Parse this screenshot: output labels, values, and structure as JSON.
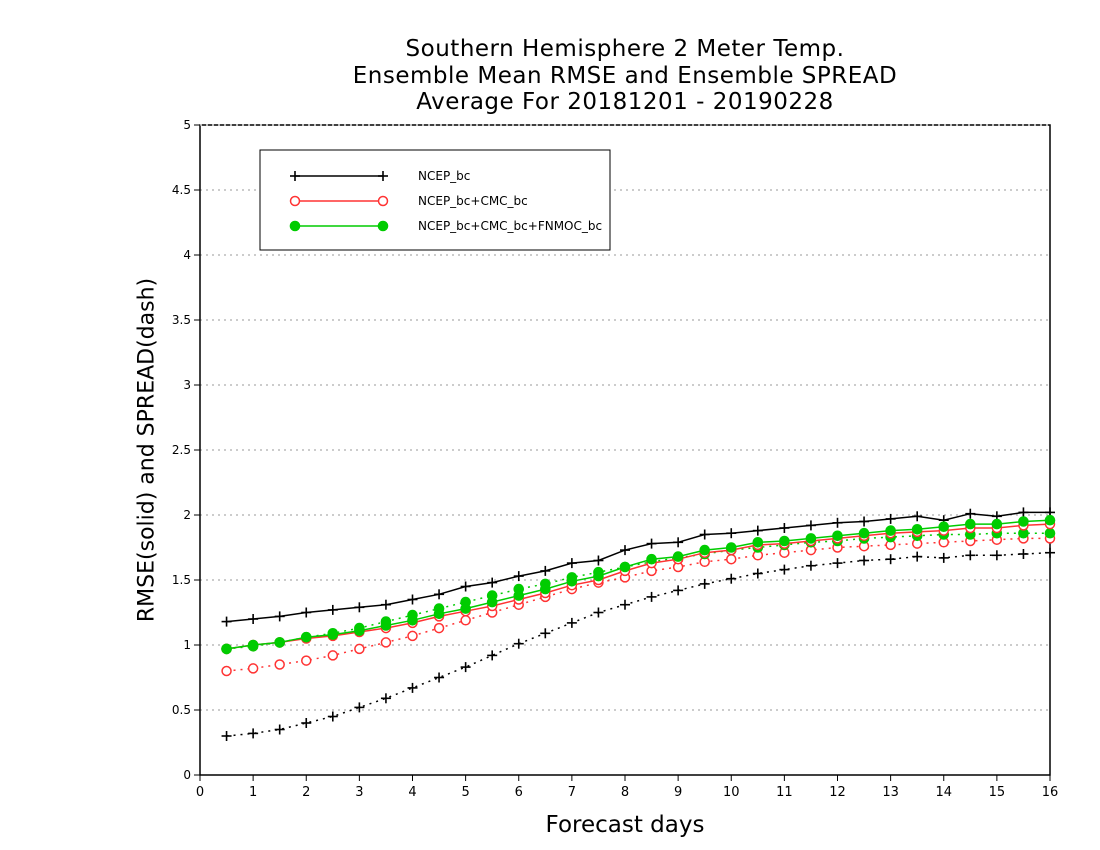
{
  "chart_data": {
    "type": "line",
    "title_lines": [
      "Southern Hemisphere 2 Meter Temp.",
      "Ensemble Mean RMSE and Ensemble SPREAD",
      "Average For 20181201 - 20190228"
    ],
    "xlabel": "Forecast days",
    "ylabel": "RMSE(solid) and SPREAD(dash)",
    "xlim": [
      0,
      16
    ],
    "ylim": [
      0,
      5
    ],
    "x_ticks": [
      "0",
      "1",
      "2",
      "3",
      "4",
      "5",
      "6",
      "7",
      "8",
      "9",
      "10",
      "11",
      "12",
      "13",
      "14",
      "15",
      "16"
    ],
    "y_ticks": [
      "0",
      "0.5",
      "1",
      "1.5",
      "2",
      "2.5",
      "3",
      "3.5",
      "4",
      "4.5",
      "5"
    ],
    "grid": "horizontal dotted",
    "legend_position": "top-left",
    "x": [
      0.5,
      1,
      1.5,
      2,
      2.5,
      3,
      3.5,
      4,
      4.5,
      5,
      5.5,
      6,
      6.5,
      7,
      7.5,
      8,
      8.5,
      9,
      9.5,
      10,
      10.5,
      11,
      11.5,
      12,
      12.5,
      13,
      13.5,
      14,
      14.5,
      15,
      15.5,
      16
    ],
    "series": [
      {
        "name": "NCEP_bc",
        "color": "#000000",
        "marker": "plus",
        "rmse": [
          1.18,
          1.2,
          1.22,
          1.25,
          1.27,
          1.29,
          1.31,
          1.35,
          1.39,
          1.45,
          1.48,
          1.53,
          1.57,
          1.63,
          1.65,
          1.73,
          1.78,
          1.79,
          1.85,
          1.86,
          1.88,
          1.9,
          1.92,
          1.94,
          1.95,
          1.97,
          1.99,
          1.96,
          2.01,
          1.99,
          2.02,
          2.02
        ],
        "spread": [
          0.3,
          0.32,
          0.35,
          0.4,
          0.45,
          0.52,
          0.59,
          0.67,
          0.75,
          0.83,
          0.92,
          1.01,
          1.09,
          1.17,
          1.25,
          1.31,
          1.37,
          1.42,
          1.47,
          1.51,
          1.55,
          1.58,
          1.61,
          1.63,
          1.65,
          1.66,
          1.68,
          1.67,
          1.69,
          1.69,
          1.7,
          1.71
        ]
      },
      {
        "name": "NCEP_bc+CMC_bc",
        "color": "#ff3333",
        "marker": "open-circle",
        "rmse": [
          0.97,
          1.0,
          1.02,
          1.05,
          1.07,
          1.1,
          1.13,
          1.17,
          1.22,
          1.26,
          1.3,
          1.35,
          1.4,
          1.46,
          1.5,
          1.57,
          1.63,
          1.66,
          1.71,
          1.73,
          1.77,
          1.78,
          1.8,
          1.82,
          1.84,
          1.86,
          1.87,
          1.88,
          1.9,
          1.9,
          1.92,
          1.93
        ],
        "spread": [
          0.8,
          0.82,
          0.85,
          0.88,
          0.92,
          0.97,
          1.02,
          1.07,
          1.13,
          1.19,
          1.25,
          1.31,
          1.37,
          1.43,
          1.48,
          1.52,
          1.57,
          1.6,
          1.64,
          1.66,
          1.69,
          1.71,
          1.73,
          1.75,
          1.76,
          1.77,
          1.78,
          1.79,
          1.8,
          1.81,
          1.82,
          1.82
        ]
      },
      {
        "name": "NCEP_bc+CMC_bc+FNMOC_bc",
        "color": "#00cc00",
        "marker": "filled-circle",
        "rmse": [
          0.97,
          1.0,
          1.02,
          1.06,
          1.08,
          1.11,
          1.15,
          1.19,
          1.24,
          1.28,
          1.33,
          1.38,
          1.43,
          1.49,
          1.53,
          1.6,
          1.66,
          1.68,
          1.73,
          1.75,
          1.79,
          1.8,
          1.82,
          1.84,
          1.86,
          1.88,
          1.89,
          1.91,
          1.93,
          1.93,
          1.95,
          1.96
        ],
        "spread": [
          0.97,
          0.99,
          1.02,
          1.06,
          1.09,
          1.13,
          1.18,
          1.23,
          1.28,
          1.33,
          1.38,
          1.43,
          1.47,
          1.52,
          1.56,
          1.6,
          1.64,
          1.67,
          1.7,
          1.73,
          1.75,
          1.77,
          1.79,
          1.8,
          1.82,
          1.83,
          1.84,
          1.85,
          1.85,
          1.86,
          1.86,
          1.86
        ]
      }
    ]
  }
}
